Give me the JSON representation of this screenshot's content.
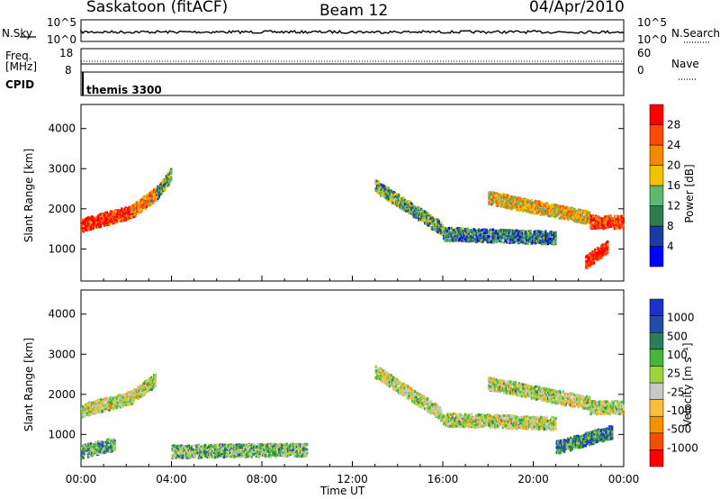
{
  "header": {
    "station": "Saskatoon (fitACF)",
    "beam": "Beam 12",
    "date": "04/Apr/2010"
  },
  "top_panels": {
    "nsky_label": "N.Sky",
    "nsky_ticks": [
      "10^5",
      "10^0"
    ],
    "nsearch_label": "N.Search",
    "nsearch_ticks": [
      "10^5",
      "10^0"
    ],
    "freq_label": "Freq.",
    "freq_unit": "[MHz]",
    "freq_ticks": [
      "18",
      "8"
    ],
    "nave_label": "Nave",
    "nave_ticks": [
      "60",
      "0"
    ],
    "cpid_label": "CPID",
    "cpid_value": "themis 3300"
  },
  "colors": {
    "power_scale": [
      "#0000ff",
      "#1c3aa6",
      "#2f7d4f",
      "#5fb86f",
      "#f2c200",
      "#f28a00",
      "#ff4a00",
      "#ff0000"
    ],
    "velocity_scale": [
      "#ff0000",
      "#f44e00",
      "#f59100",
      "#f8be3c",
      "#c8c8c8",
      "#9bd43c",
      "#46b43c",
      "#2e7d5a",
      "#234baa",
      "#1e32c8"
    ]
  },
  "chart_data": [
    {
      "type": "heatmap",
      "name": "power",
      "xlabel": "",
      "ylabel": "Slant Range [km]",
      "ylim": [
        200,
        4600
      ],
      "y_ticks": [
        "1000",
        "2000",
        "3000",
        "4000"
      ],
      "colorbar_label": "Power [dB]",
      "colorbar_ticks": [
        "28",
        "24",
        "20",
        "16",
        "12",
        "8",
        "4"
      ],
      "echo_bands": [
        {
          "t_start": 0.0,
          "t_end": 2.2,
          "range_start": 1620,
          "range_end": 1950,
          "level": 0.9
        },
        {
          "t_start": 2.2,
          "t_end": 3.3,
          "range_start": 1950,
          "range_end": 2400,
          "level": 0.7
        },
        {
          "t_start": 3.3,
          "t_end": 4.0,
          "range_start": 2400,
          "range_end": 2900,
          "level": 0.4
        },
        {
          "t_start": 13.0,
          "t_end": 16.0,
          "range_start": 2600,
          "range_end": 1500,
          "level": 0.4
        },
        {
          "t_start": 16.0,
          "t_end": 21.0,
          "range_start": 1400,
          "range_end": 1300,
          "level": 0.3
        },
        {
          "t_start": 18.0,
          "t_end": 22.5,
          "range_start": 2300,
          "range_end": 1800,
          "level": 0.6
        },
        {
          "t_start": 22.5,
          "t_end": 24.0,
          "range_start": 1700,
          "range_end": 1700,
          "level": 0.85
        },
        {
          "t_start": 22.3,
          "t_end": 23.3,
          "range_start": 700,
          "range_end": 1100,
          "level": 0.95
        }
      ]
    },
    {
      "type": "heatmap",
      "name": "velocity",
      "xlabel": "Time UT",
      "ylabel": "Slant Range [km]",
      "ylim": [
        200,
        4600
      ],
      "y_ticks": [
        "1000",
        "2000",
        "3000",
        "4000"
      ],
      "x_ticks": [
        "00:00",
        "04:00",
        "08:00",
        "12:00",
        "16:00",
        "20:00",
        "00:00"
      ],
      "colorbar_label": "Velocity [m s⁻¹]",
      "colorbar_ticks": [
        "1000",
        "500",
        "100",
        "25",
        "-25",
        "-100",
        "-500",
        "-1000"
      ],
      "echo_bands": [
        {
          "t_start": 0.0,
          "t_end": 2.2,
          "range_start": 1620,
          "range_end": 1950,
          "level": 0.5
        },
        {
          "t_start": 2.2,
          "t_end": 3.3,
          "range_start": 1950,
          "range_end": 2400,
          "level": 0.5
        },
        {
          "t_start": 0.0,
          "t_end": 1.5,
          "range_start": 600,
          "range_end": 800,
          "level": 0.65
        },
        {
          "t_start": 4.0,
          "t_end": 10.0,
          "range_start": 600,
          "range_end": 650,
          "level": 0.6
        },
        {
          "t_start": 13.0,
          "t_end": 16.0,
          "range_start": 2600,
          "range_end": 1500,
          "level": 0.5
        },
        {
          "t_start": 16.0,
          "t_end": 21.0,
          "range_start": 1400,
          "range_end": 1300,
          "level": 0.5
        },
        {
          "t_start": 18.0,
          "t_end": 22.5,
          "range_start": 2300,
          "range_end": 1800,
          "level": 0.5
        },
        {
          "t_start": 22.5,
          "t_end": 24.0,
          "range_start": 1700,
          "range_end": 1700,
          "level": 0.5
        },
        {
          "t_start": 21.0,
          "t_end": 23.5,
          "range_start": 700,
          "range_end": 1100,
          "level": 0.75
        }
      ]
    }
  ]
}
